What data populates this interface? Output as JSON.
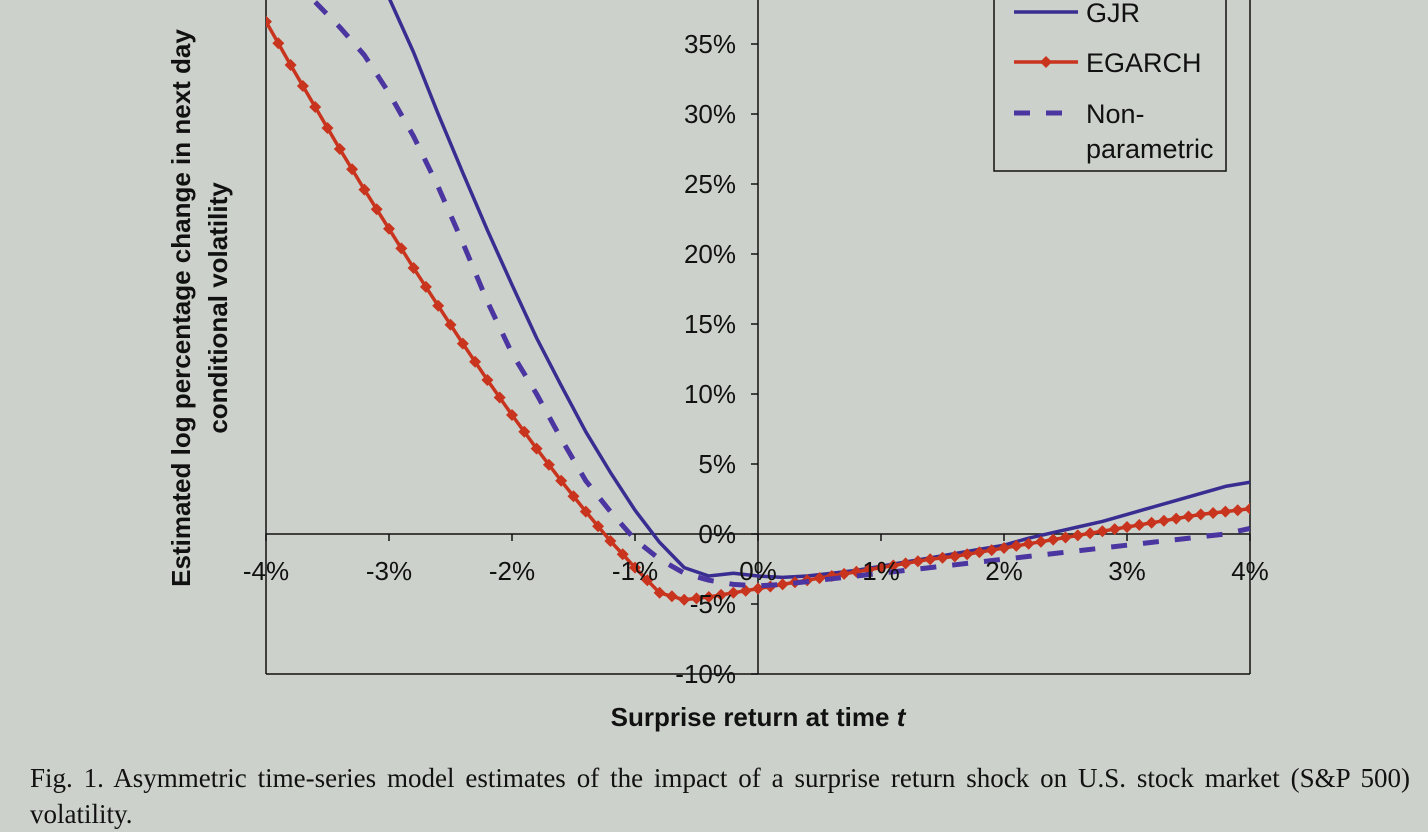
{
  "caption": "Fig. 1. Asymmetric time-series model estimates of the impact of a surprise return shock on U.S. stock market (S&P 500) volatility.",
  "chart_data": {
    "type": "line",
    "title": "",
    "xlabel": "Surprise return at time",
    "xlabel_italic": "t",
    "ylabel_line1": "Estimated log percentage change in next day",
    "ylabel_line2": "conditional volatility",
    "xlim": [
      -4,
      4
    ],
    "ylim": [
      -10,
      40
    ],
    "x_ticks": [
      -4,
      -3,
      -2,
      -1,
      0,
      1,
      2,
      3,
      4
    ],
    "x_tick_labels": [
      "-4%",
      "-3%",
      "-2%",
      "-1%",
      "0%",
      "1%",
      "2%",
      "3%",
      "4%"
    ],
    "y_ticks": [
      -10,
      -5,
      0,
      5,
      10,
      15,
      20,
      25,
      30,
      35
    ],
    "y_tick_labels": [
      "-10%",
      "-5%",
      "0%",
      "5%",
      "10%",
      "15%",
      "20%",
      "25%",
      "30%",
      "35%"
    ],
    "legend_position": "top-right",
    "grid": false,
    "series": [
      {
        "name": "GJR",
        "color": "#3a2d91",
        "style": "solid",
        "x": [
          -3.0,
          -2.8,
          -2.6,
          -2.4,
          -2.2,
          -2.0,
          -1.8,
          -1.6,
          -1.4,
          -1.2,
          -1.0,
          -0.8,
          -0.6,
          -0.4,
          -0.2,
          0.0,
          0.2,
          0.4,
          0.6,
          0.8,
          1.0,
          1.2,
          1.4,
          1.6,
          1.8,
          2.0,
          2.2,
          2.4,
          2.6,
          2.8,
          3.0,
          3.2,
          3.4,
          3.6,
          3.8,
          4.0
        ],
        "y": [
          38.3,
          34.4,
          30.0,
          25.8,
          21.7,
          17.8,
          14.0,
          10.6,
          7.3,
          4.4,
          1.7,
          -0.6,
          -2.4,
          -3.0,
          -2.8,
          -3.0,
          -3.1,
          -3.0,
          -2.8,
          -2.6,
          -2.3,
          -2.0,
          -1.7,
          -1.4,
          -1.1,
          -0.8,
          -0.3,
          0.1,
          0.5,
          0.9,
          1.4,
          1.9,
          2.4,
          2.9,
          3.4,
          3.7
        ]
      },
      {
        "name": "EGARCH",
        "color": "#c8341d",
        "style": "solid-diamond",
        "x": [
          -4.0,
          -3.8,
          -3.6,
          -3.4,
          -3.2,
          -3.0,
          -2.8,
          -2.6,
          -2.4,
          -2.2,
          -2.0,
          -1.8,
          -1.6,
          -1.4,
          -1.2,
          -1.0,
          -0.8,
          -0.6,
          -0.4,
          -0.2,
          0.0,
          0.2,
          0.4,
          0.6,
          0.8,
          1.0,
          1.2,
          1.4,
          1.6,
          1.8,
          2.0,
          2.2,
          2.4,
          2.6,
          2.8,
          3.0,
          3.2,
          3.4,
          3.6,
          3.8,
          4.0
        ],
        "y": [
          36.6,
          33.5,
          30.5,
          27.5,
          24.6,
          21.8,
          19.0,
          16.3,
          13.6,
          11.0,
          8.5,
          6.1,
          3.8,
          1.6,
          -0.5,
          -2.4,
          -4.2,
          -4.7,
          -4.5,
          -4.2,
          -3.9,
          -3.6,
          -3.3,
          -3.0,
          -2.7,
          -2.4,
          -2.1,
          -1.8,
          -1.6,
          -1.3,
          -1.0,
          -0.7,
          -0.4,
          -0.1,
          0.2,
          0.5,
          0.8,
          1.1,
          1.4,
          1.6,
          1.8
        ]
      },
      {
        "name": "Non-\nparametric",
        "color": "#4b35a0",
        "style": "dashed",
        "x": [
          -3.6,
          -3.4,
          -3.2,
          -3.0,
          -2.8,
          -2.6,
          -2.4,
          -2.2,
          -2.0,
          -1.8,
          -1.6,
          -1.4,
          -1.2,
          -1.0,
          -0.8,
          -0.6,
          -0.4,
          -0.2,
          0.0,
          0.2,
          0.4,
          0.6,
          0.8,
          1.0,
          1.2,
          1.4,
          1.6,
          1.8,
          2.0,
          2.2,
          2.4,
          2.6,
          2.8,
          3.0,
          3.2,
          3.4,
          3.6,
          3.8,
          4.0
        ],
        "y": [
          38.0,
          36.2,
          34.2,
          31.5,
          28.4,
          24.8,
          20.8,
          16.6,
          12.9,
          10.0,
          6.8,
          3.8,
          1.6,
          -0.4,
          -1.8,
          -2.8,
          -3.3,
          -3.6,
          -3.7,
          -3.6,
          -3.4,
          -3.2,
          -3.0,
          -2.8,
          -2.6,
          -2.4,
          -2.2,
          -2.0,
          -1.8,
          -1.6,
          -1.4,
          -1.2,
          -1.0,
          -0.8,
          -0.6,
          -0.4,
          -0.2,
          0.0,
          0.4
        ]
      }
    ]
  }
}
